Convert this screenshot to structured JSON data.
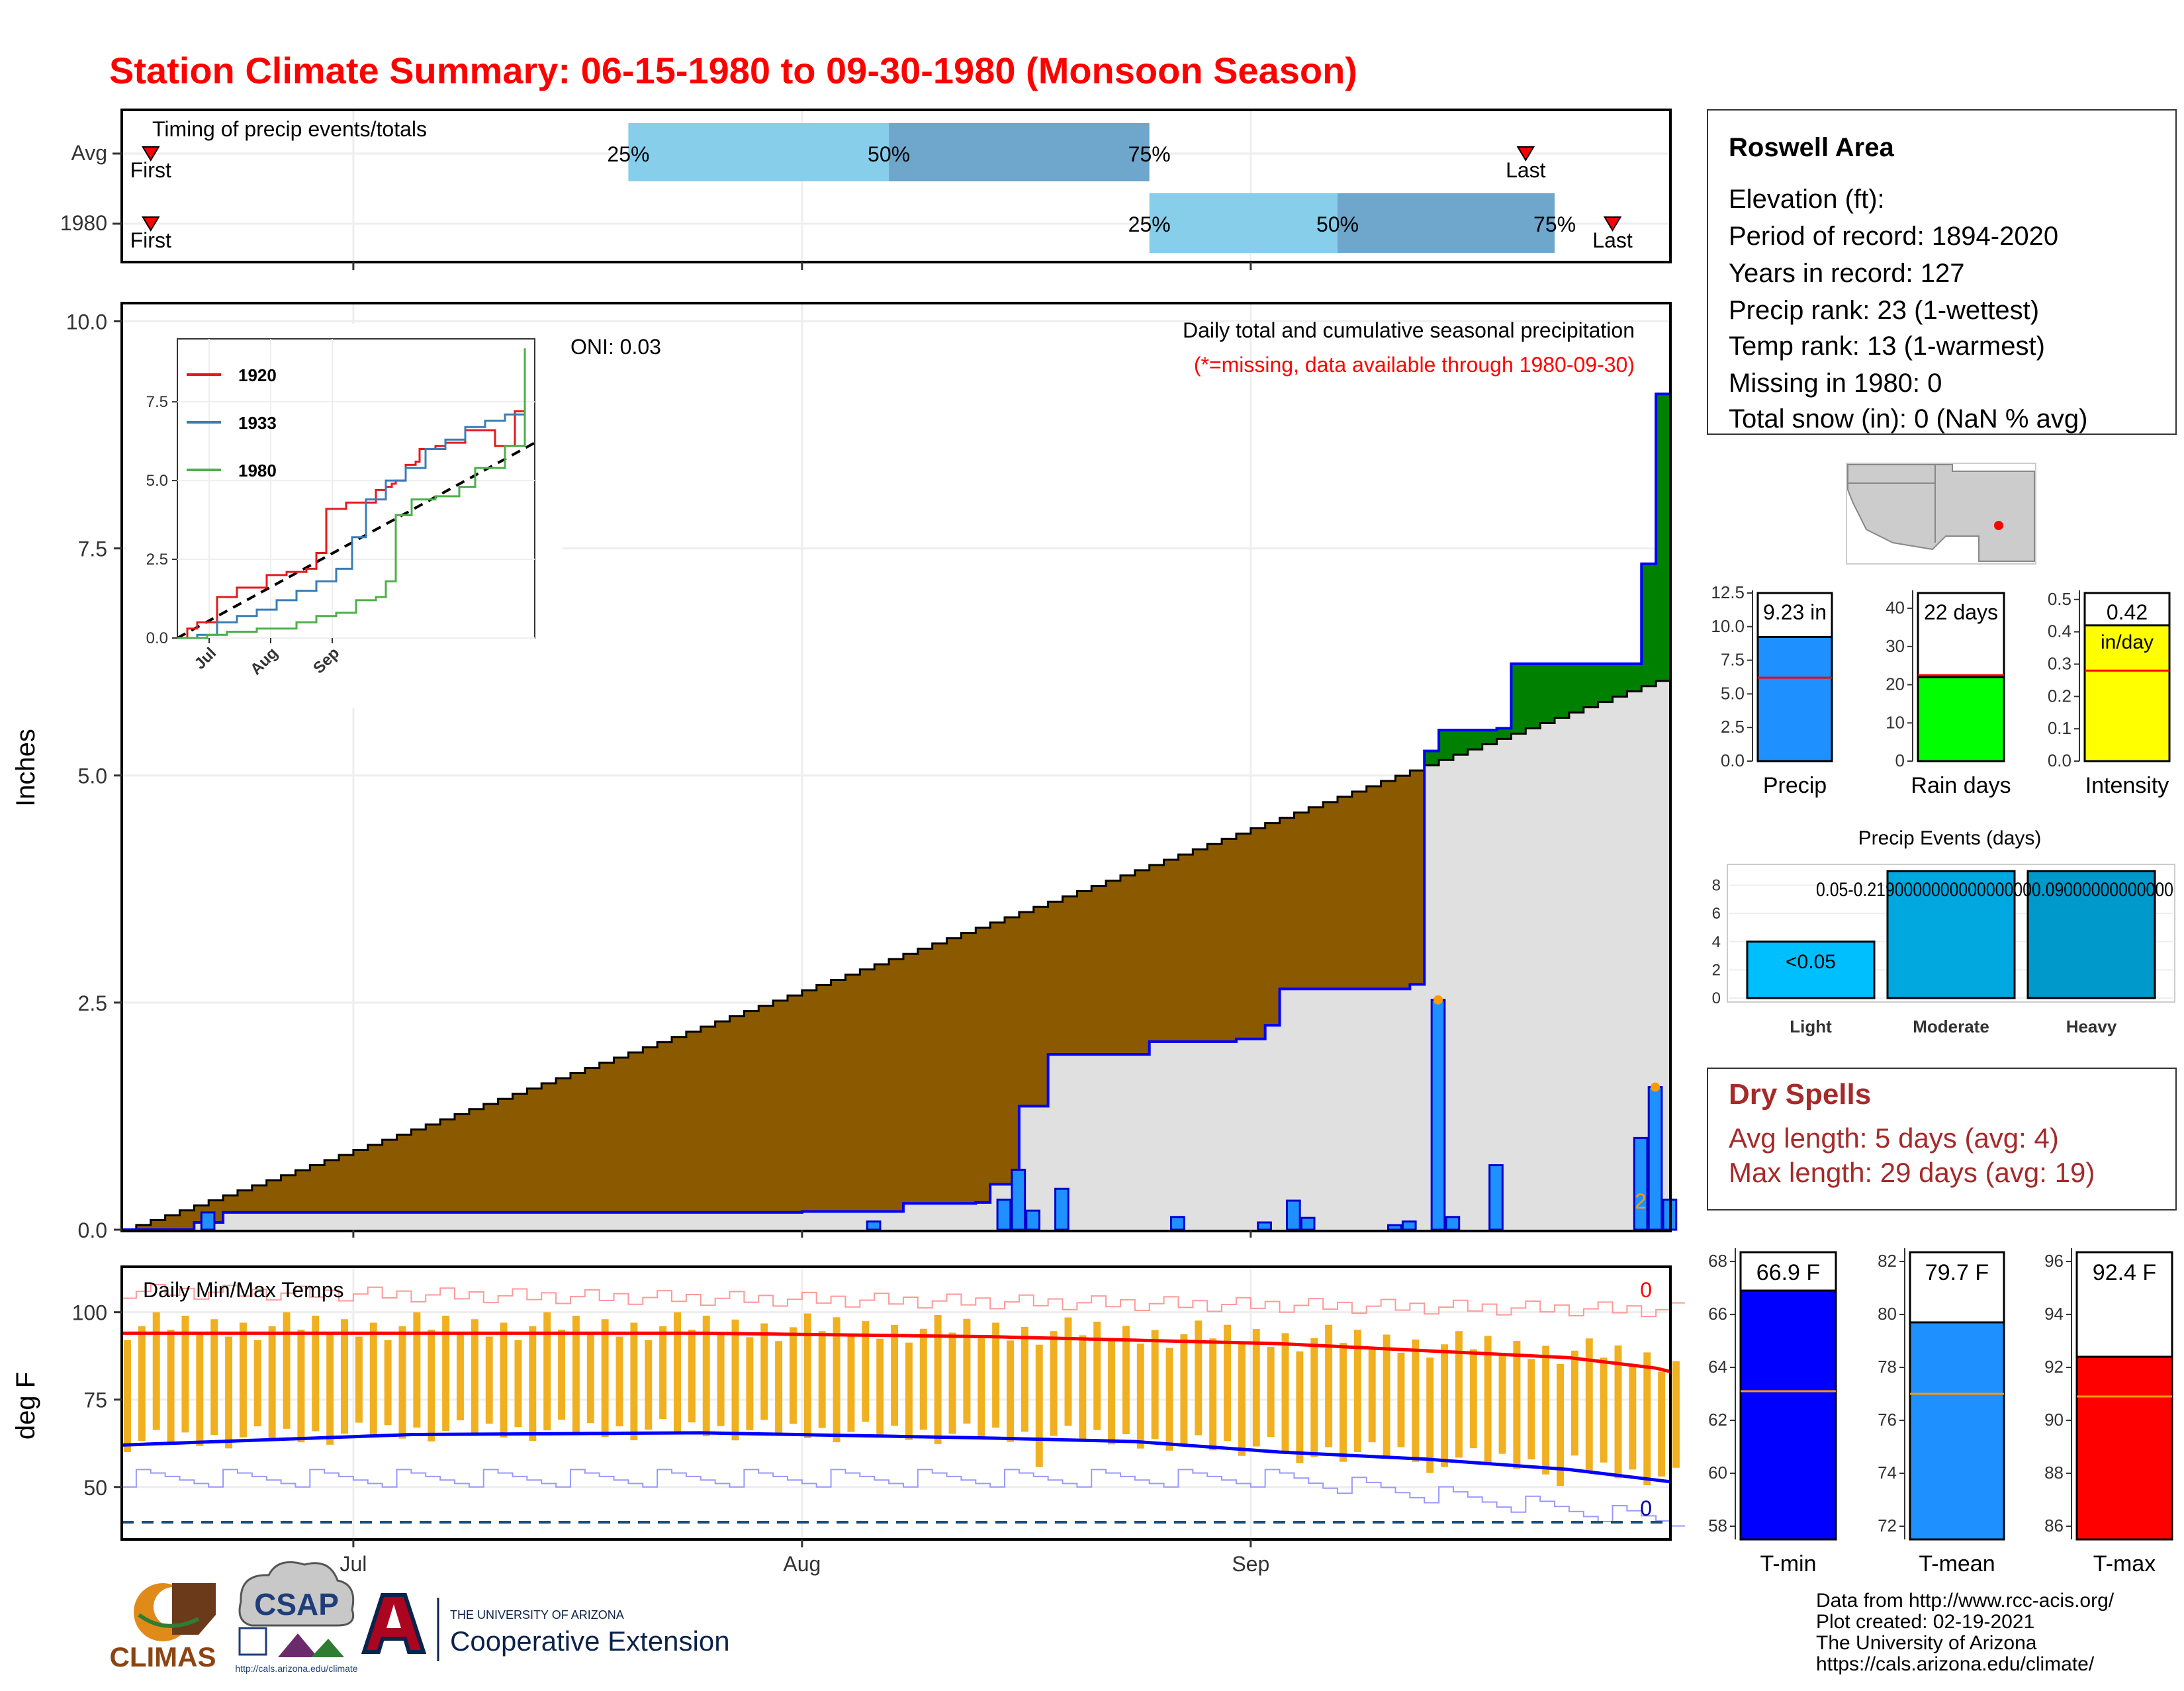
{
  "title": "Station Climate Summary: 06-15-1980 to 09-30-1980 (Monsoon Season)",
  "colors": {
    "title": "#ff0000",
    "q_light": "#87ceeb",
    "q_dark": "#6ea6cc",
    "normal_cum": "#8b5a00",
    "above_normal": "#008000",
    "obs_fill": "#e0e0e0",
    "obs_line": "#0000ff",
    "daily_bar": "#1e90ff",
    "tmin_bar": "#0000ff",
    "tmean_bar": "#1e90ff",
    "tmax_bar": "#ff0000",
    "rain_bar": "#00ff00",
    "intensity_bar": "#ffff00",
    "event_light": "#00bfff",
    "event_mod": "#00a8e0",
    "event_heavy": "#0099cc",
    "temp_bar": "#f0b020",
    "dry_spell": "#a52a2a"
  },
  "timing_panel": {
    "title": "Timing of precip events/totals",
    "rows": [
      {
        "label": "Avg",
        "first": "First",
        "last": "Last",
        "q25": "25%",
        "q50": "50%",
        "q75": "75%",
        "first_date": "1980-06-17",
        "last_date": "1980-09-20",
        "q25_date": "1980-07-20",
        "q50_date": "1980-08-07",
        "q75_date": "1980-08-25"
      },
      {
        "label": "1980",
        "first": "First",
        "last": "Last",
        "q25": "25%",
        "q50": "50%",
        "q75": "75%",
        "first_date": "1980-06-17",
        "last_date": "1980-09-26",
        "q25_date": "1980-08-25",
        "q50_date": "1980-09-07",
        "q75_date": "1980-09-22"
      }
    ]
  },
  "month_labels": [
    "Jul",
    "Aug",
    "Sep"
  ],
  "precip_panel": {
    "ylabel": "Inches",
    "oni": "ONI: 0.03",
    "subtitle": "Daily total and cumulative seasonal precipitation",
    "missing_note": "(*=missing, data available through 1980-09-30)",
    "yticks": [
      "0.0",
      "2.5",
      "5.0",
      "7.5",
      "10.0"
    ],
    "count_label": "2"
  },
  "inset": {
    "yticks": [
      "0.0",
      "2.5",
      "5.0",
      "7.5"
    ],
    "xticks": [
      "Jul",
      "Aug",
      "Sep"
    ],
    "legend": [
      {
        "label": "1920",
        "color": "#e41a1c"
      },
      {
        "label": "1933",
        "color": "#377eb8"
      },
      {
        "label": "1980",
        "color": "#4daf4a"
      }
    ]
  },
  "temp_panel": {
    "title": "Daily Min/Max Temps",
    "ylabel": "deg F",
    "yticks": [
      "50",
      "75",
      "100"
    ],
    "top_count": "0",
    "bottom_count": "0"
  },
  "info_box": {
    "station": "Roswell Area",
    "lines": [
      "Elevation (ft):",
      "Period of record: 1894-2020",
      "Years in record: 127",
      "Precip rank: 23 (1-wettest)",
      "Temp rank: 13 (1-warmest)",
      "Missing in 1980: 0",
      "Total snow (in): 0 (NaN % avg)"
    ]
  },
  "summary_bars": [
    {
      "name": "Precip",
      "value_label": "9.23 in",
      "yticks": [
        "0.0",
        "2.5",
        "5.0",
        "7.5",
        "10.0",
        "12.5"
      ],
      "ymax": 12.5,
      "value": 9.23,
      "avg": 6.2
    },
    {
      "name": "Rain days",
      "value_label": "22 days",
      "yticks": [
        "0",
        "10",
        "20",
        "30",
        "40"
      ],
      "ymax": 44,
      "value": 22,
      "avg": 22.5
    },
    {
      "name": "Intensity",
      "value_label": "0.42",
      "value_label2": "in/day",
      "yticks": [
        "0.0",
        "0.1",
        "0.2",
        "0.3",
        "0.4",
        "0.5"
      ],
      "ymax": 0.52,
      "value": 0.42,
      "avg": 0.28
    }
  ],
  "events_panel": {
    "title": "Precip Events (days)",
    "yticks": [
      "0",
      "2",
      "4",
      "6",
      "8"
    ],
    "categories": [
      "Light",
      "Moderate",
      "Heavy"
    ],
    "values": [
      4,
      9,
      9
    ],
    "labels": [
      "<0.05",
      "0.05-0.219000000000000000",
      "0.09000000000000"
    ]
  },
  "dry_spells": {
    "title": "Dry Spells",
    "avg_line": "Avg length: 5 days (avg: 4)",
    "max_line": "Max length: 29 days (avg: 19)"
  },
  "temp_bars": [
    {
      "name": "T-min",
      "value_label": "66.9 F",
      "yticks": [
        "58",
        "60",
        "62",
        "64",
        "66",
        "68"
      ],
      "ymin": 57.5,
      "ymax": 68.5,
      "value": 66.9,
      "avg": 63.1
    },
    {
      "name": "T-mean",
      "value_label": "79.7 F",
      "yticks": [
        "72",
        "74",
        "76",
        "78",
        "80",
        "82"
      ],
      "ymin": 71.5,
      "ymax": 82.5,
      "value": 79.7,
      "avg": 77.0
    },
    {
      "name": "T-max",
      "value_label": "92.4 F",
      "yticks": [
        "86",
        "88",
        "90",
        "92",
        "94",
        "96"
      ],
      "ymin": 85.5,
      "ymax": 96.5,
      "value": 92.4,
      "avg": 90.9
    }
  ],
  "credits": [
    "Data from http://www.rcc-acis.org/",
    "Plot created: 02-19-2021",
    "The University of Arizona",
    "https://cals.arizona.edu/climate/"
  ],
  "logos": {
    "climas": "CLIMAS",
    "csap": "CSAP",
    "csap_url": "http://cals.arizona.edu/climate",
    "ua_small": "THE UNIVERSITY OF ARIZONA",
    "ua_big": "Cooperative Extension"
  },
  "chart_data": [
    {
      "type": "area",
      "title": "Daily total and cumulative seasonal precipitation",
      "ylabel": "Inches",
      "ylim": [
        0,
        10
      ],
      "x_range": [
        "1980-06-15",
        "1980-09-30"
      ],
      "series": [
        {
          "name": "1980",
          "points": [
            [
              "1980-06-15",
              0
            ],
            [
              "1980-06-20",
              0.08
            ],
            [
              "1980-06-22",
              0.19
            ],
            [
              "1980-07-15",
              0.19
            ],
            [
              "1980-08-01",
              0.2
            ],
            [
              "1980-08-08",
              0.29
            ],
            [
              "1980-08-13",
              0.3
            ],
            [
              "1980-08-14",
              0.5
            ],
            [
              "1980-08-16",
              1.36
            ],
            [
              "1980-08-18",
              1.93
            ],
            [
              "1980-08-24",
              1.93
            ],
            [
              "1980-08-25",
              2.07
            ],
            [
              "1980-08-31",
              2.1
            ],
            [
              "1980-09-02",
              2.25
            ],
            [
              "1980-09-03",
              2.65
            ],
            [
              "1980-09-11",
              2.65
            ],
            [
              "1980-09-12",
              2.7
            ],
            [
              "1980-09-13",
              5.27
            ],
            [
              "1980-09-14",
              5.5
            ],
            [
              "1980-09-18",
              5.52
            ],
            [
              "1980-09-19",
              6.23
            ],
            [
              "1980-09-27",
              6.23
            ],
            [
              "1980-09-28",
              7.33
            ],
            [
              "1980-09-29",
              9.2
            ],
            [
              "1980-09-30",
              9.23
            ]
          ]
        }
      ],
      "normal_cumulative_end": 6.1,
      "daily_bars": [
        {
          "date": "1980-06-21",
          "value": 0.19
        },
        {
          "date": "1980-08-06",
          "value": 0.09
        },
        {
          "date": "1980-08-15",
          "value": 0.33
        },
        {
          "date": "1980-08-16",
          "value": 0.66
        },
        {
          "date": "1980-08-17",
          "value": 0.21
        },
        {
          "date": "1980-08-19",
          "value": 0.45
        },
        {
          "date": "1980-08-27",
          "value": 0.14
        },
        {
          "date": "1980-09-02",
          "value": 0.08
        },
        {
          "date": "1980-09-04",
          "value": 0.32
        },
        {
          "date": "1980-09-05",
          "value": 0.13
        },
        {
          "date": "1980-09-11",
          "value": 0.05
        },
        {
          "date": "1980-09-12",
          "value": 0.09
        },
        {
          "date": "1980-09-14",
          "value": 2.53
        },
        {
          "date": "1980-09-15",
          "value": 0.14
        },
        {
          "date": "1980-09-18",
          "value": 0.71
        },
        {
          "date": "1980-09-28",
          "value": 1.01
        },
        {
          "date": "1980-09-29",
          "value": 1.57
        },
        {
          "date": "1980-09-30",
          "value": 0.33
        }
      ]
    },
    {
      "type": "line",
      "ylim": [
        0,
        9.5
      ],
      "series": [
        {
          "name": "1920",
          "points": [
            [
              0,
              0
            ],
            [
              5,
              0.3
            ],
            [
              10,
              0.5
            ],
            [
              20,
              1.3
            ],
            [
              30,
              1.6
            ],
            [
              45,
              2.0
            ],
            [
              55,
              2.1
            ],
            [
              65,
              2.2
            ],
            [
              70,
              2.7
            ],
            [
              75,
              4.1
            ],
            [
              85,
              4.3
            ],
            [
              95,
              4.3
            ],
            [
              100,
              4.7
            ],
            [
              105,
              4.8
            ],
            [
              108,
              4.9
            ],
            [
              110,
              5.0
            ],
            [
              115,
              5.5
            ],
            [
              120,
              5.6
            ],
            [
              122,
              6.0
            ],
            [
              130,
              6.1
            ],
            [
              135,
              6.2
            ],
            [
              145,
              6.6
            ],
            [
              155,
              6.6
            ],
            [
              160,
              6.1
            ],
            [
              170,
              7.2
            ],
            [
              175,
              7.5
            ]
          ]
        },
        {
          "name": "1933",
          "points": [
            [
              0,
              0
            ],
            [
              10,
              0.1
            ],
            [
              20,
              0.5
            ],
            [
              30,
              0.7
            ],
            [
              40,
              0.9
            ],
            [
              50,
              1.2
            ],
            [
              60,
              1.5
            ],
            [
              70,
              1.8
            ],
            [
              80,
              2.2
            ],
            [
              88,
              3.2
            ],
            [
              95,
              4.4
            ],
            [
              105,
              5.0
            ],
            [
              115,
              5.4
            ],
            [
              125,
              6.0
            ],
            [
              135,
              6.3
            ],
            [
              145,
              6.7
            ],
            [
              155,
              6.9
            ],
            [
              165,
              7.1
            ],
            [
              175,
              7.5
            ]
          ]
        },
        {
          "name": "1980",
          "points": [
            [
              0,
              0
            ],
            [
              15,
              0.1
            ],
            [
              25,
              0.2
            ],
            [
              40,
              0.3
            ],
            [
              60,
              0.5
            ],
            [
              70,
              0.7
            ],
            [
              80,
              0.8
            ],
            [
              90,
              1.2
            ],
            [
              100,
              1.3
            ],
            [
              105,
              1.8
            ],
            [
              110,
              3.9
            ],
            [
              118,
              4.4
            ],
            [
              130,
              4.5
            ],
            [
              142,
              4.8
            ],
            [
              150,
              5.4
            ],
            [
              165,
              6.1
            ],
            [
              175,
              9.2
            ]
          ]
        }
      ]
    },
    {
      "type": "bar",
      "title": "Daily Min/Max Temps",
      "ylabel": "deg F",
      "ylim": [
        35,
        113
      ],
      "avg_max_series": [
        [
          0,
          94
        ],
        [
          20,
          94
        ],
        [
          40,
          94
        ],
        [
          60,
          93
        ],
        [
          70,
          92
        ],
        [
          80,
          91
        ],
        [
          90,
          89
        ],
        [
          100,
          87
        ],
        [
          106,
          84
        ],
        [
          108,
          82
        ]
      ],
      "avg_min_series": [
        [
          0,
          62
        ],
        [
          20,
          65
        ],
        [
          40,
          65.5
        ],
        [
          60,
          64
        ],
        [
          70,
          63
        ],
        [
          80,
          60
        ],
        [
          90,
          58
        ],
        [
          100,
          55
        ],
        [
          106,
          52
        ],
        [
          108,
          51
        ]
      ]
    },
    {
      "type": "bar",
      "categories": [
        "Precip",
        "Rain days",
        "Intensity"
      ],
      "values": [
        9.23,
        22,
        0.42
      ]
    },
    {
      "type": "bar",
      "title": "Precip Events (days)",
      "categories": [
        "Light",
        "Moderate",
        "Heavy"
      ],
      "values": [
        4,
        9,
        9
      ]
    },
    {
      "type": "bar",
      "categories": [
        "T-min",
        "T-mean",
        "T-max"
      ],
      "values": [
        66.9,
        79.7,
        92.4
      ]
    }
  ]
}
